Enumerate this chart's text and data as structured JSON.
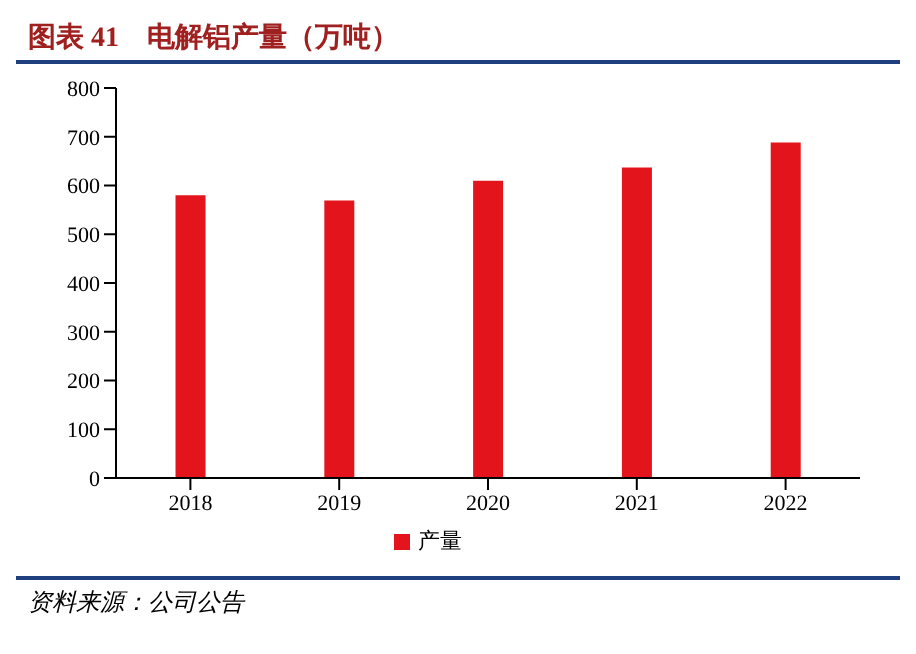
{
  "chart_data": {
    "type": "bar",
    "title": "图表 41　电解铝产量（万吨）",
    "categories": [
      "2018",
      "2019",
      "2020",
      "2021",
      "2022"
    ],
    "series": [
      {
        "name": "产量",
        "color": "#e3141c",
        "values": [
          580,
          569,
          610,
          637,
          688
        ]
      }
    ],
    "ylim": [
      0,
      800
    ],
    "yticks": [
      0,
      100,
      200,
      300,
      400,
      500,
      600,
      700,
      800
    ],
    "grid": false,
    "legend": "bottom",
    "annotations": [
      "资料来源：公司公告"
    ]
  }
}
